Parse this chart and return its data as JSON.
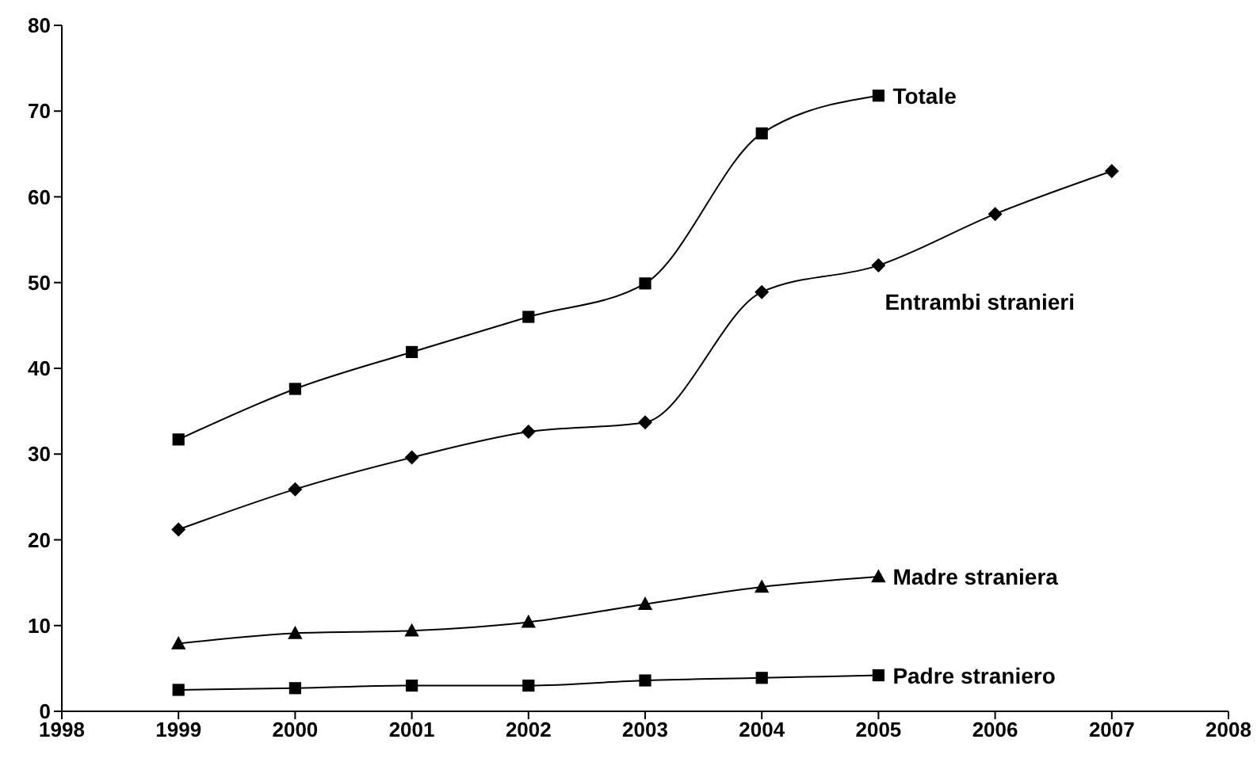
{
  "chart_data": {
    "type": "line",
    "x": [
      1999,
      2000,
      2001,
      2002,
      2003,
      2004,
      2005,
      2006,
      2007
    ],
    "series": [
      {
        "name": "Totale",
        "color": "#000000",
        "marker": "square",
        "values": [
          31.7,
          37.6,
          41.9,
          46.0,
          49.9,
          67.4,
          71.8,
          null,
          null
        ]
      },
      {
        "name": "Entrambi stranieri",
        "color": "#000000",
        "marker": "diamond",
        "values": [
          21.2,
          25.9,
          29.6,
          32.6,
          33.7,
          48.9,
          52.0,
          58.0,
          63.0
        ]
      },
      {
        "name": "Madre straniera",
        "color": "#000000",
        "marker": "triangle",
        "values": [
          7.9,
          9.1,
          9.4,
          10.4,
          12.5,
          14.5,
          15.7,
          null,
          null
        ]
      },
      {
        "name": "Padre straniero",
        "color": "#000000",
        "marker": "square",
        "values": [
          2.5,
          2.7,
          3.0,
          3.0,
          3.6,
          3.9,
          4.2,
          null,
          null
        ]
      }
    ],
    "xlim": [
      1998,
      2008
    ],
    "xticks": [
      1998,
      1999,
      2000,
      2001,
      2002,
      2003,
      2004,
      2005,
      2006,
      2007,
      2008
    ],
    "ylim": [
      0,
      80
    ],
    "yticks": [
      0,
      10,
      20,
      30,
      40,
      50,
      60,
      70,
      80
    ],
    "grid": false
  }
}
